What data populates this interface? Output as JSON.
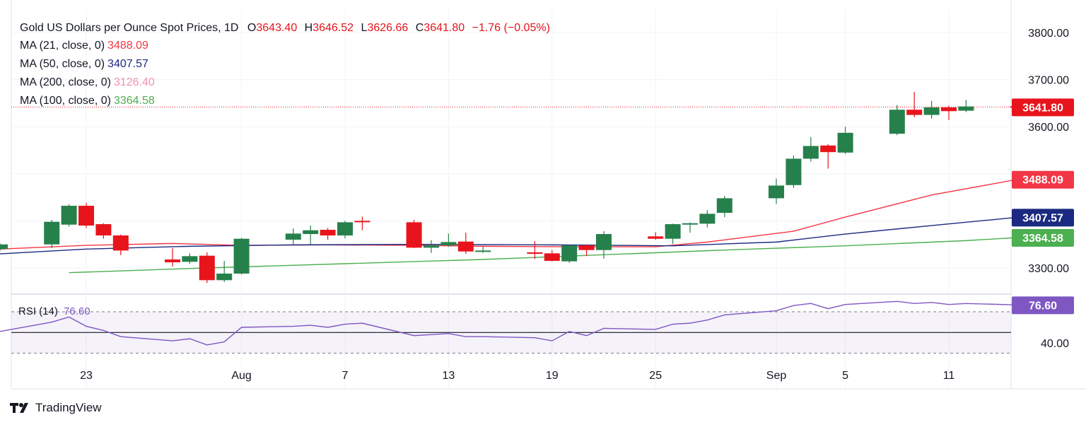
{
  "colors": {
    "up": "#26804b",
    "down": "#e8141c",
    "ma21": "#f23645",
    "ma50": "#1b2a80",
    "ma200": "#f48fb1",
    "ma100": "#4caf50",
    "rsi": "#7e57c2",
    "grid": "#f0f3fa"
  },
  "header": {
    "title": "Gold US Dollars per Ounce Spot Prices, 1D",
    "o_label": "O",
    "o_value": "3643.40",
    "h_label": "H",
    "h_value": "3646.52",
    "l_label": "L",
    "l_value": "3626.66",
    "c_label": "C",
    "c_value": "3641.80",
    "change": "−1.76 (−0.05%)"
  },
  "ma_legend": [
    {
      "label": "MA (21, close, 0)",
      "value": "3488.09",
      "color": "#f23645"
    },
    {
      "label": "MA (50, close, 0)",
      "value": "3407.57",
      "color": "#1b2a80"
    },
    {
      "label": "MA (200, close, 0)",
      "value": "3126.40",
      "color": "#f48fb1"
    },
    {
      "label": "MA (100, close, 0)",
      "value": "3364.58",
      "color": "#4caf50"
    }
  ],
  "rsi_legend": {
    "label": "RSI (14)",
    "value": "76.60"
  },
  "brand": "TradingView",
  "chart_data": {
    "type": "candlestick",
    "title": "Gold US Dollars per Ounce Spot Prices, 1D",
    "y_ticks": [
      "3800.00",
      "3700.00",
      "3600.00",
      "3300.00"
    ],
    "x_ticks": [
      {
        "label": "23",
        "date": "2025-07-23"
      },
      {
        "label": "Aug",
        "date": "2025-08-01"
      },
      {
        "label": "7",
        "date": "2025-08-07"
      },
      {
        "label": "13",
        "date": "2025-08-13"
      },
      {
        "label": "19",
        "date": "2025-08-19"
      },
      {
        "label": "25",
        "date": "2025-08-25"
      },
      {
        "label": "Sep",
        "date": "2025-09-01"
      },
      {
        "label": "5",
        "date": "2025-09-05"
      },
      {
        "label": "11",
        "date": "2025-09-11"
      }
    ],
    "price_labels": [
      {
        "value": 3641.8,
        "text": "3641.80",
        "color": "#e8141c"
      },
      {
        "value": 3488.09,
        "text": "3488.09",
        "color": "#f23645"
      },
      {
        "value": 3407.57,
        "text": "3407.57",
        "color": "#1b2a80"
      },
      {
        "value": 3364.58,
        "text": "3364.58",
        "color": "#4caf50"
      }
    ],
    "candles": [
      {
        "date": "2025-07-18",
        "o": 3340,
        "h": 3352,
        "l": 3336,
        "c": 3350
      },
      {
        "date": "2025-07-21",
        "o": 3350,
        "h": 3402,
        "l": 3342,
        "c": 3398
      },
      {
        "date": "2025-07-22",
        "o": 3392,
        "h": 3435,
        "l": 3388,
        "c": 3432
      },
      {
        "date": "2025-07-23",
        "o": 3432,
        "h": 3438,
        "l": 3385,
        "c": 3390
      },
      {
        "date": "2025-07-24",
        "o": 3393,
        "h": 3395,
        "l": 3362,
        "c": 3369
      },
      {
        "date": "2025-07-25",
        "o": 3369,
        "h": 3371,
        "l": 3327,
        "c": 3337
      },
      {
        "date": "2025-07-28",
        "o": 3318,
        "h": 3342,
        "l": 3303,
        "c": 3312
      },
      {
        "date": "2025-07-29",
        "o": 3313,
        "h": 3331,
        "l": 3309,
        "c": 3325
      },
      {
        "date": "2025-07-30",
        "o": 3326,
        "h": 3333,
        "l": 3268,
        "c": 3274
      },
      {
        "date": "2025-07-31",
        "o": 3274,
        "h": 3315,
        "l": 3270,
        "c": 3288
      },
      {
        "date": "2025-08-01",
        "o": 3288,
        "h": 3364,
        "l": 3286,
        "c": 3362
      },
      {
        "date": "2025-08-04",
        "o": 3360,
        "h": 3384,
        "l": 3349,
        "c": 3373
      },
      {
        "date": "2025-08-05",
        "o": 3372,
        "h": 3390,
        "l": 3350,
        "c": 3380
      },
      {
        "date": "2025-08-06",
        "o": 3381,
        "h": 3385,
        "l": 3360,
        "c": 3369
      },
      {
        "date": "2025-08-07",
        "o": 3369,
        "h": 3400,
        "l": 3363,
        "c": 3397
      },
      {
        "date": "2025-08-08",
        "o": 3400,
        "h": 3409,
        "l": 3380,
        "c": 3398
      },
      {
        "date": "2025-08-11",
        "o": 3397,
        "h": 3402,
        "l": 3342,
        "c": 3343
      },
      {
        "date": "2025-08-12",
        "o": 3343,
        "h": 3359,
        "l": 3332,
        "c": 3348
      },
      {
        "date": "2025-08-13",
        "o": 3348,
        "h": 3373,
        "l": 3345,
        "c": 3355
      },
      {
        "date": "2025-08-14",
        "o": 3356,
        "h": 3375,
        "l": 3330,
        "c": 3335
      },
      {
        "date": "2025-08-15",
        "o": 3335,
        "h": 3345,
        "l": 3332,
        "c": 3337
      },
      {
        "date": "2025-08-18",
        "o": 3333,
        "h": 3357,
        "l": 3319,
        "c": 3330
      },
      {
        "date": "2025-08-19",
        "o": 3331,
        "h": 3338,
        "l": 3314,
        "c": 3315
      },
      {
        "date": "2025-08-20",
        "o": 3314,
        "h": 3350,
        "l": 3311,
        "c": 3348
      },
      {
        "date": "2025-08-21",
        "o": 3348,
        "h": 3350,
        "l": 3325,
        "c": 3338
      },
      {
        "date": "2025-08-22",
        "o": 3338,
        "h": 3378,
        "l": 3320,
        "c": 3372
      },
      {
        "date": "2025-08-25",
        "o": 3367,
        "h": 3376,
        "l": 3360,
        "c": 3362
      },
      {
        "date": "2025-08-26",
        "o": 3362,
        "h": 3394,
        "l": 3351,
        "c": 3393
      },
      {
        "date": "2025-08-27",
        "o": 3393,
        "h": 3397,
        "l": 3375,
        "c": 3395
      },
      {
        "date": "2025-08-28",
        "o": 3394,
        "h": 3423,
        "l": 3386,
        "c": 3415
      },
      {
        "date": "2025-08-29",
        "o": 3417,
        "h": 3453,
        "l": 3408,
        "c": 3448
      },
      {
        "date": "2025-09-01",
        "o": 3448,
        "h": 3490,
        "l": 3436,
        "c": 3475
      },
      {
        "date": "2025-09-02",
        "o": 3476,
        "h": 3539,
        "l": 3470,
        "c": 3532
      },
      {
        "date": "2025-09-03",
        "o": 3532,
        "h": 3578,
        "l": 3526,
        "c": 3559
      },
      {
        "date": "2025-09-04",
        "o": 3560,
        "h": 3563,
        "l": 3511,
        "c": 3546
      },
      {
        "date": "2025-09-05",
        "o": 3545,
        "h": 3600,
        "l": 3542,
        "c": 3587
      },
      {
        "date": "2025-09-08",
        "o": 3585,
        "h": 3646,
        "l": 3582,
        "c": 3636
      },
      {
        "date": "2025-09-09",
        "o": 3636,
        "h": 3674,
        "l": 3620,
        "c": 3625
      },
      {
        "date": "2025-09-10",
        "o": 3625,
        "h": 3655,
        "l": 3617,
        "c": 3641
      },
      {
        "date": "2025-09-11",
        "o": 3641,
        "h": 3645,
        "l": 3614,
        "c": 3633
      },
      {
        "date": "2025-09-12",
        "o": 3634,
        "h": 3657,
        "l": 3631,
        "c": 3643
      },
      {
        "date": "2025-09-15",
        "o": 3643.4,
        "h": 3646.52,
        "l": 3626.66,
        "c": 3641.8
      }
    ],
    "moving_averages": [
      {
        "name": "MA (21, close, 0)",
        "color": "#f23645",
        "points": [
          [
            "2025-07-18",
            3340
          ],
          [
            "2025-07-23",
            3348
          ],
          [
            "2025-07-28",
            3352
          ],
          [
            "2025-08-01",
            3348
          ],
          [
            "2025-08-06",
            3349
          ],
          [
            "2025-08-11",
            3348
          ],
          [
            "2025-08-15",
            3346
          ],
          [
            "2025-08-20",
            3345
          ],
          [
            "2025-08-25",
            3345
          ],
          [
            "2025-08-28",
            3355
          ],
          [
            "2025-09-02",
            3378
          ],
          [
            "2025-09-05",
            3408
          ],
          [
            "2025-09-10",
            3455
          ],
          [
            "2025-09-15",
            3488.09
          ]
        ]
      },
      {
        "name": "MA (50, close, 0)",
        "color": "#1b2a80",
        "points": [
          [
            "2025-07-18",
            3330
          ],
          [
            "2025-07-23",
            3340
          ],
          [
            "2025-07-29",
            3346
          ],
          [
            "2025-08-04",
            3349
          ],
          [
            "2025-08-11",
            3350
          ],
          [
            "2025-08-19",
            3349
          ],
          [
            "2025-08-26",
            3347
          ],
          [
            "2025-09-01",
            3355
          ],
          [
            "2025-09-05",
            3372
          ],
          [
            "2025-09-10",
            3390
          ],
          [
            "2025-09-15",
            3407.57
          ]
        ]
      },
      {
        "name": "MA (100, close, 0)",
        "color": "#4caf50",
        "points": [
          [
            "2025-07-22",
            3290
          ],
          [
            "2025-07-30",
            3300
          ],
          [
            "2025-08-07",
            3309
          ],
          [
            "2025-08-15",
            3318
          ],
          [
            "2025-08-22",
            3328
          ],
          [
            "2025-08-29",
            3338
          ],
          [
            "2025-09-05",
            3347
          ],
          [
            "2025-09-12",
            3358
          ],
          [
            "2025-09-15",
            3364.58
          ]
        ]
      }
    ],
    "rsi": {
      "name": "RSI (14)",
      "current": 76.6,
      "upper": 70,
      "middle": 50,
      "lower": 30,
      "tick": "40.00",
      "values": [
        51,
        60,
        65,
        56,
        52,
        46,
        42,
        44,
        38,
        41,
        55,
        56,
        57,
        55,
        58,
        59,
        47,
        48,
        49,
        46,
        46,
        45,
        42,
        51,
        47,
        54,
        53,
        58,
        59,
        62,
        67,
        71,
        76,
        78,
        73,
        77,
        80,
        78,
        79,
        77,
        78,
        76.6
      ]
    }
  }
}
